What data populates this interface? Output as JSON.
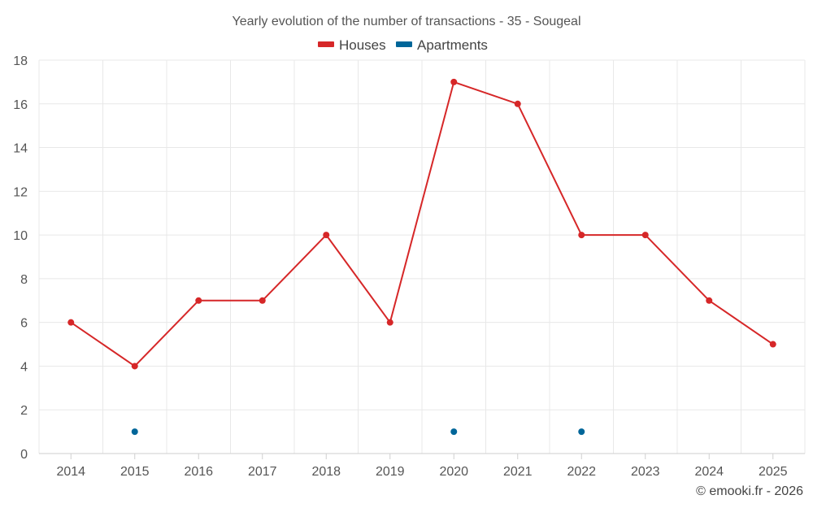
{
  "chart_data": {
    "type": "line",
    "title": "Yearly evolution of the number of transactions - 35 - Sougeal",
    "categories": [
      "2014",
      "2015",
      "2016",
      "2017",
      "2018",
      "2019",
      "2020",
      "2021",
      "2022",
      "2023",
      "2024",
      "2025"
    ],
    "ylim": [
      0,
      18
    ],
    "yticks": [
      0,
      2,
      4,
      6,
      8,
      10,
      12,
      14,
      16,
      18
    ],
    "grid": true,
    "legend_position": "top-center",
    "series": [
      {
        "name": "Houses",
        "color": "#d62728",
        "connected": true,
        "values": [
          6,
          4,
          7,
          7,
          10,
          6,
          17,
          16,
          10,
          10,
          7,
          5
        ]
      },
      {
        "name": "Apartments",
        "color": "#006699",
        "connected": false,
        "values": [
          null,
          1,
          null,
          null,
          null,
          null,
          1,
          null,
          1,
          null,
          null,
          null
        ]
      }
    ]
  },
  "credit": "© emooki.fr - 2026"
}
